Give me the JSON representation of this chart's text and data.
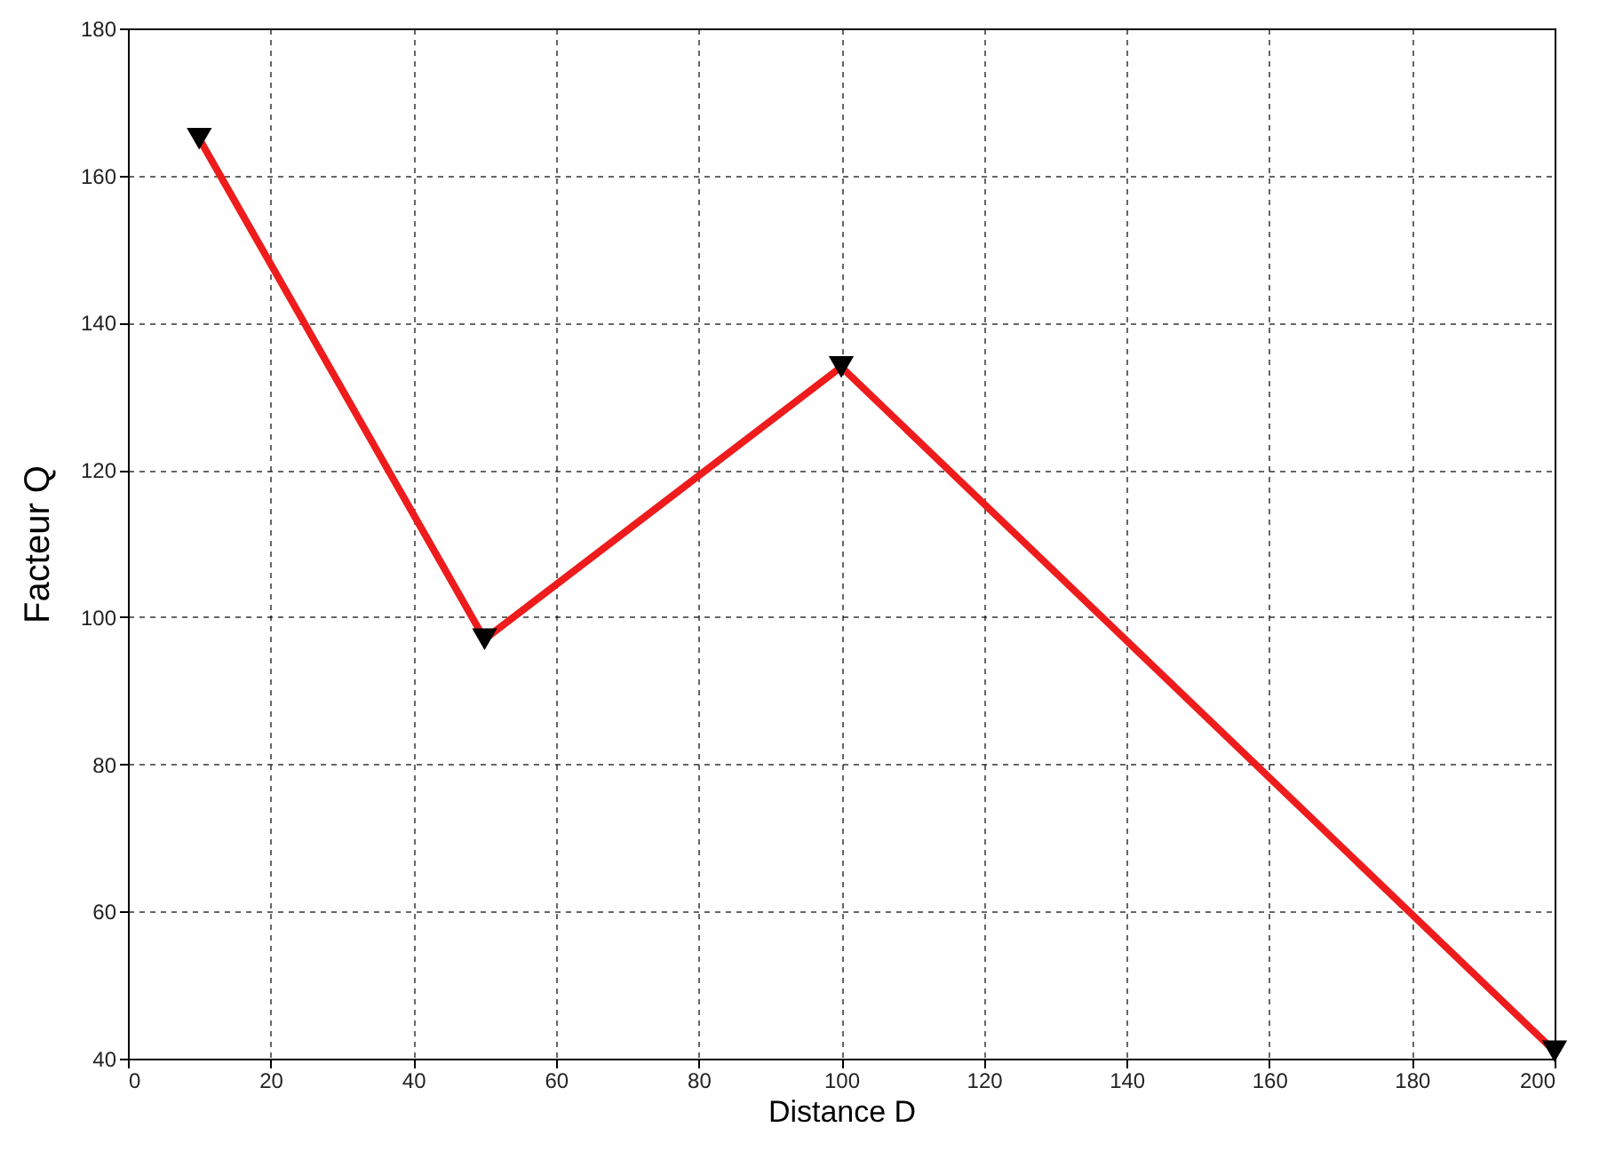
{
  "chart_data": {
    "type": "line",
    "xlabel": "Distance D",
    "ylabel": "Facteur Q",
    "x": [
      10,
      50,
      100,
      200
    ],
    "series": [
      {
        "color": "#ee1c1c",
        "values": [
          165,
          97,
          134,
          41
        ]
      }
    ],
    "xlim": [
      0,
      200
    ],
    "xticks": [
      0,
      20,
      40,
      60,
      80,
      100,
      120,
      140,
      160,
      180,
      200
    ],
    "ylim": [
      40,
      180
    ],
    "yticks": [
      40,
      60,
      80,
      100,
      120,
      140,
      160,
      180
    ],
    "grid": true,
    "marker": "triangle",
    "line_style": "solid"
  }
}
